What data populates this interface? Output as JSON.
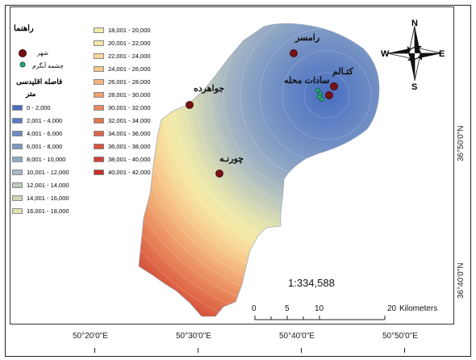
{
  "legend": {
    "title": "راهنما",
    "city_label": "شهر",
    "spring_label": "چشمه آبگرم",
    "distance_title": "فاصله اقلیدسی",
    "unit": "متر",
    "classes": [
      {
        "label": "0 - 2,000",
        "color": "#4a6ec0"
      },
      {
        "label": "2,001 - 4,000",
        "color": "#5a7cc3"
      },
      {
        "label": "4,001 - 6,000",
        "color": "#6c8bc4"
      },
      {
        "label": "6,001 - 8,000",
        "color": "#7f9ac5"
      },
      {
        "label": "8,001 - 10,000",
        "color": "#93a9c4"
      },
      {
        "label": "10,001 - 12,000",
        "color": "#a8b8c2"
      },
      {
        "label": "12,001 - 14,000",
        "color": "#bdc8bd"
      },
      {
        "label": "14,001 - 16,000",
        "color": "#d1d6b6"
      },
      {
        "label": "16,001 - 18,000",
        "color": "#e2e2b0"
      },
      {
        "label": "18,001 - 20,000",
        "color": "#efeaab"
      },
      {
        "label": "20,001 - 22,000",
        "color": "#f6e6a4"
      },
      {
        "label": "22,001 - 24,000",
        "color": "#f7d898"
      },
      {
        "label": "24,001 - 26,000",
        "color": "#f6c78a"
      },
      {
        "label": "26,001 - 28,000",
        "color": "#f3b47c"
      },
      {
        "label": "28,001 - 30,000",
        "color": "#efa06d"
      },
      {
        "label": "30,001 - 32,000",
        "color": "#ea8c5f"
      },
      {
        "label": "32,001 - 34,000",
        "color": "#e47852"
      },
      {
        "label": "34,001 - 36,000",
        "color": "#dd6446"
      },
      {
        "label": "36,001 - 38,000",
        "color": "#d6523b"
      },
      {
        "label": "38,001 - 40,000",
        "color": "#cf4132"
      },
      {
        "label": "40,001 - 42,000",
        "color": "#c8302a"
      }
    ]
  },
  "places": {
    "ramsar": "رامسر",
    "katalem": "کتـالم",
    "sadat": "سادات محله",
    "javaherdeh": "جواهرده",
    "jorneh": "چورنـه"
  },
  "compass": {
    "n": "N",
    "s": "S",
    "e": "E",
    "w": "W"
  },
  "scale": {
    "ratio": "1:334,588",
    "ticks": [
      "0",
      "5",
      "10",
      "20"
    ],
    "unit": "Kilometers"
  },
  "coords": {
    "bottom": [
      "50°20'0\"E",
      "50°30'0\"E",
      "50°40'0\"E",
      "50°50'0\"E"
    ],
    "right": [
      "36°50'0\"N",
      "36°40'0\"N"
    ]
  }
}
